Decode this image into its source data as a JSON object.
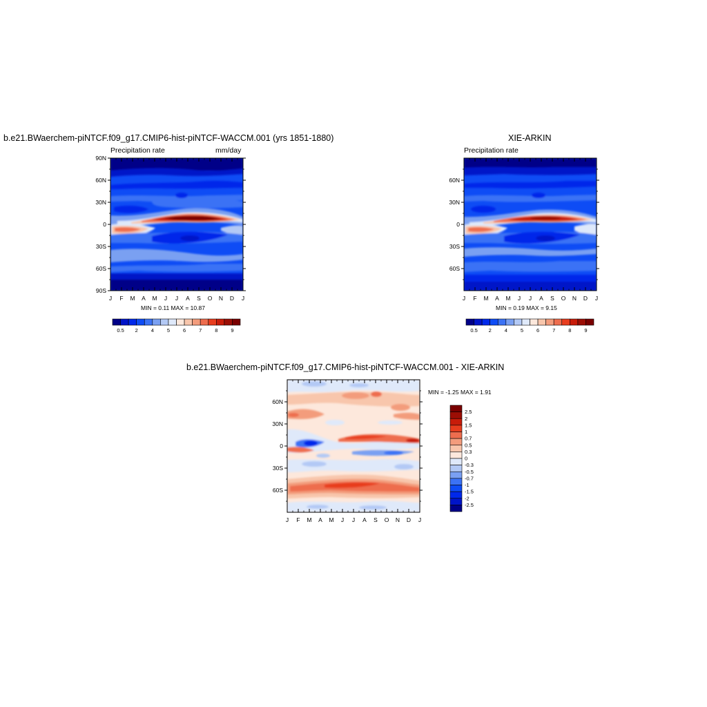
{
  "palette": [
    "#000088",
    "#0014c8",
    "#0028ea",
    "#0e4cf5",
    "#3b72f5",
    "#7aa0f2",
    "#b3c9f5",
    "#dfe9fa",
    "#fde8dc",
    "#f8c6ac",
    "#f39c7c",
    "#ee6d4e",
    "#e83d1e",
    "#c81c0a",
    "#9c0e05",
    "#7a0000"
  ],
  "diff_palette": [
    "#000088",
    "#0014c8",
    "#0028ea",
    "#0e4cf5",
    "#3b72f5",
    "#7aa0f2",
    "#b3c9f5",
    "#dfe9fa",
    "#fde8dc",
    "#f8c6ac",
    "#f39c7c",
    "#ee6d4e",
    "#e83d1e",
    "#c81c0a",
    "#9c0e05",
    "#7a0000"
  ],
  "chart_data": [
    {
      "type": "heatmap",
      "id": "model",
      "title": "b.e21.BWaerchem-piNTCF.f09_g17.CMIP6-hist-piNTCF-WACCM.001 (yrs 1851-1880)",
      "left_label": "Precipitation rate",
      "right_label": "mm/day",
      "x_ticks": [
        "J",
        "F",
        "M",
        "A",
        "M",
        "J",
        "J",
        "A",
        "S",
        "O",
        "N",
        "D",
        "J"
      ],
      "y_ticks": [
        "90N",
        "60N",
        "30N",
        "0",
        "30S",
        "60S",
        "90S"
      ],
      "y_tick_values": [
        90,
        60,
        30,
        0,
        -30,
        -60,
        -90
      ],
      "ylim": [
        -90,
        90
      ],
      "minmax": "MIN =   0.11 MAX =  10.87",
      "colorbar_labels": [
        "0.5",
        "2",
        "4",
        "5",
        "6",
        "7",
        "8",
        "9"
      ],
      "colorbar_levels": [
        0.5,
        1,
        2,
        3,
        4,
        4.5,
        5,
        5.5,
        6,
        6.5,
        7,
        7.5,
        8,
        8.5,
        9
      ]
    },
    {
      "type": "heatmap",
      "id": "obs",
      "title": "XIE-ARKIN",
      "left_label": "Precipitation rate",
      "right_label": "",
      "x_ticks": [
        "J",
        "F",
        "M",
        "A",
        "M",
        "J",
        "J",
        "A",
        "S",
        "O",
        "N",
        "D",
        "J"
      ],
      "y_ticks": [
        "60N",
        "30N",
        "0",
        "30S",
        "60S"
      ],
      "y_tick_values": [
        60,
        30,
        0,
        -30,
        -60
      ],
      "ylim": [
        -90,
        90
      ],
      "minmax": "MIN =   0.19 MAX =   9.15",
      "colorbar_labels": [
        "0.5",
        "2",
        "4",
        "5",
        "6",
        "7",
        "8",
        "9"
      ],
      "colorbar_levels": [
        0.5,
        1,
        2,
        3,
        4,
        4.5,
        5,
        5.5,
        6,
        6.5,
        7,
        7.5,
        8,
        8.5,
        9
      ]
    },
    {
      "type": "heatmap",
      "id": "diff",
      "title": "b.e21.BWaerchem-piNTCF.f09_g17.CMIP6-hist-piNTCF-WACCM.001 - XIE-ARKIN",
      "x_ticks": [
        "J",
        "F",
        "M",
        "A",
        "M",
        "J",
        "J",
        "A",
        "S",
        "O",
        "N",
        "D",
        "J"
      ],
      "y_ticks": [
        "60N",
        "30N",
        "0",
        "30S",
        "60S"
      ],
      "y_tick_values": [
        60,
        30,
        0,
        -30,
        -60
      ],
      "ylim": [
        -90,
        90
      ],
      "minmax": "MIN =  -1.25 MAX =   1.91",
      "colorbar_labels": [
        "2.5",
        "2",
        "1.5",
        "1",
        "0.7",
        "0.5",
        "0.3",
        "0",
        "-0.3",
        "-0.5",
        "-0.7",
        "-1",
        "-1.5",
        "-2",
        "-2.5"
      ],
      "colorbar_levels": [
        -2.5,
        -2,
        -1.5,
        -1,
        -0.7,
        -0.5,
        -0.3,
        0,
        0.3,
        0.5,
        0.7,
        1,
        1.5,
        2,
        2.5
      ]
    }
  ]
}
